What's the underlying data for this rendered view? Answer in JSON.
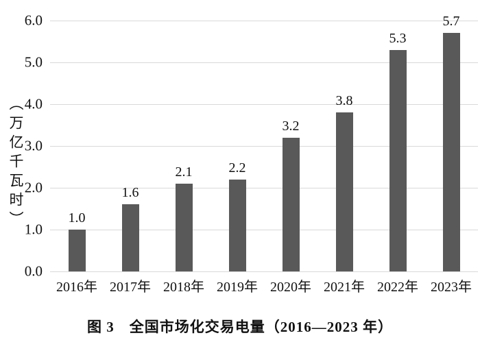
{
  "chart_data": {
    "type": "bar",
    "title": "图 3　全国市场化交易电量（2016—2023 年）",
    "ylabel": "（万亿千瓦时）",
    "xlabel": "",
    "categories": [
      "2016年",
      "2017年",
      "2018年",
      "2019年",
      "2020年",
      "2021年",
      "2022年",
      "2023年"
    ],
    "values": [
      1.0,
      1.6,
      2.1,
      2.2,
      3.2,
      3.8,
      5.3,
      5.7
    ],
    "value_labels": [
      "1.0",
      "1.6",
      "2.1",
      "2.2",
      "3.2",
      "3.8",
      "5.3",
      "5.7"
    ],
    "ylim": [
      0.0,
      6.0
    ],
    "ytick_step": 1.0,
    "yticks": [
      "0.0",
      "1.0",
      "2.0",
      "3.0",
      "4.0",
      "5.0",
      "6.0"
    ],
    "grid": "horizontal",
    "legend": "none",
    "bar_color": "#595959",
    "gridline_color": "#d9d9d9",
    "text_color": "#111111",
    "background_color": "#ffffff"
  }
}
